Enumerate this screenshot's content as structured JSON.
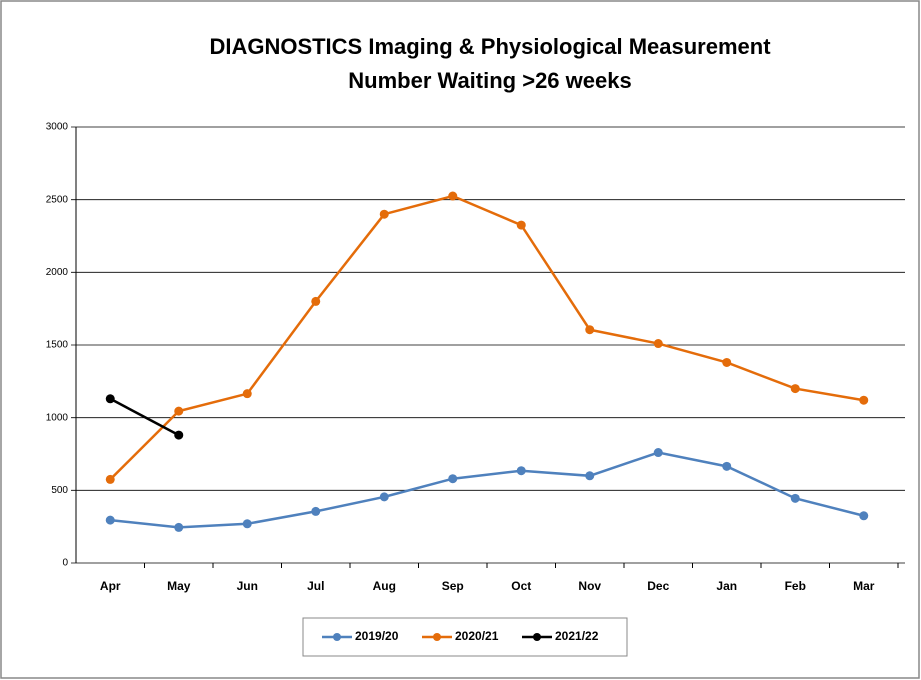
{
  "chart_data": {
    "type": "line",
    "title": "DIAGNOSTICS  Imaging & Physiological Measurement",
    "subtitle": "Number Waiting >26 weeks",
    "categories": [
      "Apr",
      "May",
      "Jun",
      "Jul",
      "Aug",
      "Sep",
      "Oct",
      "Nov",
      "Dec",
      "Jan",
      "Feb",
      "Mar"
    ],
    "series": [
      {
        "name": "2019/20",
        "color": "#4f81bd",
        "values": [
          295,
          245,
          270,
          355,
          455,
          580,
          635,
          600,
          760,
          665,
          445,
          325
        ]
      },
      {
        "name": "2020/21",
        "color": "#e46c0a",
        "values": [
          575,
          1045,
          1165,
          1800,
          2400,
          2525,
          2325,
          1605,
          1510,
          1380,
          1200,
          1120
        ]
      },
      {
        "name": "2021/22",
        "color": "#000000",
        "values": [
          1130,
          880,
          null,
          null,
          null,
          null,
          null,
          null,
          null,
          null,
          null,
          null
        ]
      }
    ],
    "ylim": [
      0,
      3000
    ],
    "yticks": [
      0,
      500,
      1000,
      1500,
      2000,
      2500,
      3000
    ],
    "grid": true,
    "legend": "bottom"
  }
}
